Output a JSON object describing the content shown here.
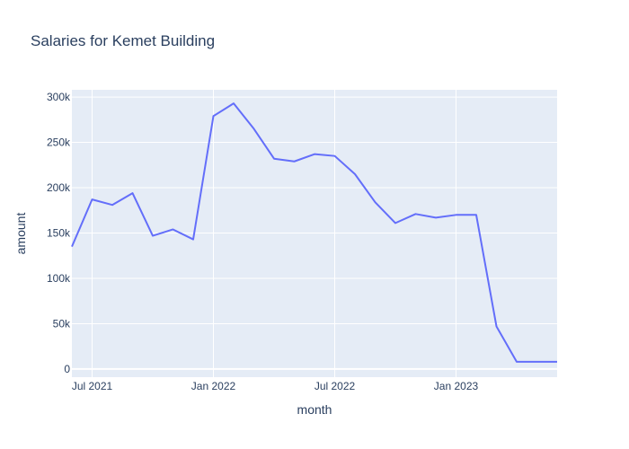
{
  "chart_data": {
    "type": "line",
    "title": "Salaries for Kemet Building",
    "xlabel": "month",
    "ylabel": "amount",
    "x": [
      "2021-06",
      "2021-07",
      "2021-08",
      "2021-09",
      "2021-10",
      "2021-11",
      "2021-12",
      "2022-01",
      "2022-02",
      "2022-03",
      "2022-04",
      "2022-05",
      "2022-06",
      "2022-07",
      "2022-08",
      "2022-09",
      "2022-10",
      "2022-11",
      "2022-12",
      "2023-01",
      "2023-02",
      "2023-03",
      "2023-04",
      "2023-05",
      "2023-06"
    ],
    "series": [
      {
        "values": [
          135000,
          187000,
          181000,
          194000,
          147000,
          154000,
          143000,
          279000,
          293000,
          265000,
          232000,
          229000,
          237000,
          235000,
          215000,
          184000,
          161000,
          171000,
          167000,
          170000,
          170000,
          47000,
          8000,
          8000,
          8000
        ],
        "color": "#636efa"
      }
    ],
    "x_ticks": [
      "Jul 2021",
      "Jan 2022",
      "Jul 2022",
      "Jan 2023"
    ],
    "x_tick_dates": [
      "2021-07",
      "2022-01",
      "2022-07",
      "2023-01"
    ],
    "y_ticks": [
      "0",
      "50k",
      "100k",
      "150k",
      "200k",
      "250k",
      "300k"
    ],
    "y_tick_values": [
      0,
      50000,
      100000,
      150000,
      200000,
      250000,
      300000
    ],
    "ylim": [
      -9000,
      308000
    ],
    "grid": true,
    "colors": {
      "plot_bg": "#e5ecf6",
      "grid": "#ffffff",
      "text": "#2a3f5f",
      "line": "#636efa"
    }
  }
}
